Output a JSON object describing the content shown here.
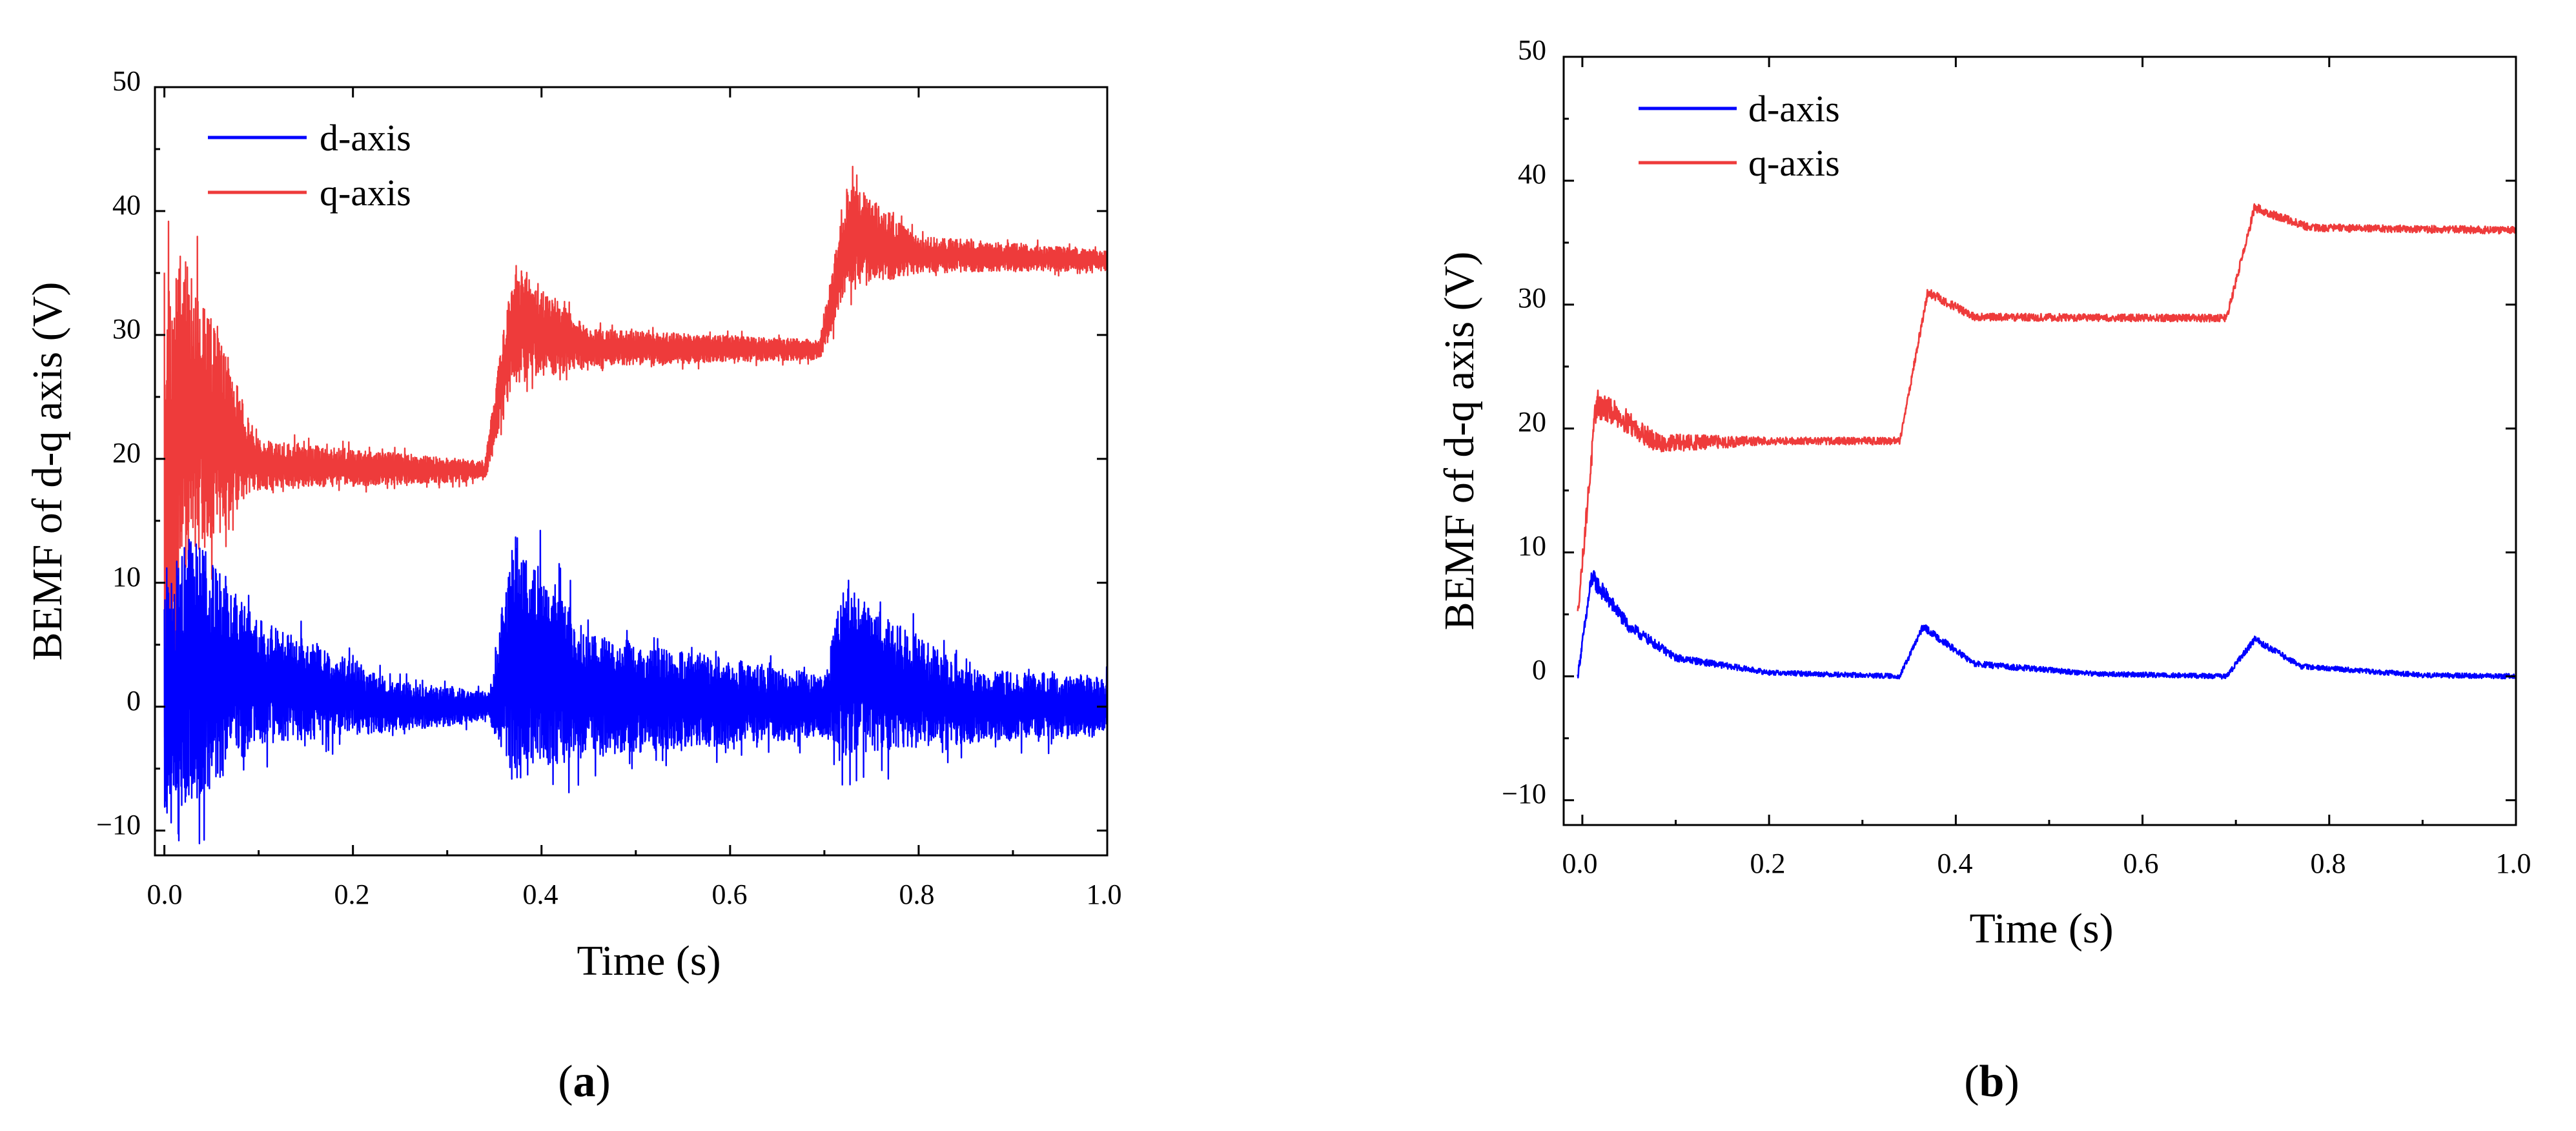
{
  "chart_data": [
    {
      "type": "line",
      "panel_label": "a",
      "xlabel": "Time (s)",
      "ylabel": "BEMF of d-q axis (V)",
      "xlim": [
        -0.01,
        1.0
      ],
      "ylim": [
        -12,
        50
      ],
      "xticks": [
        0.0,
        0.2,
        0.4,
        0.6,
        0.8,
        1.0
      ],
      "xtick_labels": [
        "0.0",
        "0.2",
        "0.4",
        "0.6",
        "0.8",
        "1.0"
      ],
      "yticks": [
        -10,
        0,
        10,
        20,
        30,
        40,
        50
      ],
      "ytick_labels": [
        "−10",
        "0",
        "10",
        "20",
        "30",
        "40",
        "50"
      ],
      "legend_position": "top-left",
      "series": [
        {
          "name": "d-axis",
          "color": "#0000ff",
          "noise": "high",
          "envelope": [
            {
              "t": 0.0,
              "center": 0,
              "amp": 10
            },
            {
              "t": 0.03,
              "center": 3,
              "amp": 11
            },
            {
              "t": 0.1,
              "center": 2,
              "amp": 5
            },
            {
              "t": 0.25,
              "center": 0,
              "amp": 2
            },
            {
              "t": 0.345,
              "center": 0,
              "amp": 1.2
            },
            {
              "t": 0.37,
              "center": 4,
              "amp": 10
            },
            {
              "t": 0.45,
              "center": 1,
              "amp": 5
            },
            {
              "t": 0.7,
              "center": 0,
              "amp": 2.5
            },
            {
              "t": 0.72,
              "center": 3,
              "amp": 7
            },
            {
              "t": 0.85,
              "center": 0,
              "amp": 3
            },
            {
              "t": 1.0,
              "center": 0,
              "amp": 2.5
            }
          ]
        },
        {
          "name": "q-axis",
          "color": "#ee3b3b",
          "noise": "high",
          "envelope": [
            {
              "t": 0.0,
              "center": 15,
              "amp": 18
            },
            {
              "t": 0.02,
              "center": 24,
              "amp": 13
            },
            {
              "t": 0.1,
              "center": 19.5,
              "amp": 2
            },
            {
              "t": 0.34,
              "center": 19,
              "amp": 0.8
            },
            {
              "t": 0.37,
              "center": 31,
              "amp": 5
            },
            {
              "t": 0.45,
              "center": 29,
              "amp": 1.5
            },
            {
              "t": 0.695,
              "center": 28.8,
              "amp": 0.8
            },
            {
              "t": 0.725,
              "center": 38,
              "amp": 4.5
            },
            {
              "t": 0.8,
              "center": 36.5,
              "amp": 1.5
            },
            {
              "t": 1.0,
              "center": 36,
              "amp": 0.8
            }
          ]
        }
      ]
    },
    {
      "type": "line",
      "panel_label": "b",
      "xlabel": "Time (s)",
      "ylabel": "BEMF of d-q axis (V)",
      "xlim": [
        -0.02,
        1.0
      ],
      "ylim": [
        -12,
        50
      ],
      "xticks": [
        0.0,
        0.2,
        0.4,
        0.6,
        0.8,
        1.0
      ],
      "xtick_labels": [
        "0.0",
        "0.2",
        "0.4",
        "0.6",
        "0.8",
        "1.0"
      ],
      "yticks": [
        -10,
        0,
        10,
        20,
        30,
        40,
        50
      ],
      "ytick_labels": [
        "−10",
        "0",
        "10",
        "20",
        "30",
        "40",
        "50"
      ],
      "legend_position": "top-left",
      "series": [
        {
          "name": "d-axis",
          "color": "#0000ff",
          "noise": "low",
          "envelope": [
            {
              "t": -0.005,
              "center": 0,
              "amp": 0.3
            },
            {
              "t": 0.01,
              "center": 8,
              "amp": 0.8
            },
            {
              "t": 0.05,
              "center": 4,
              "amp": 0.5
            },
            {
              "t": 0.1,
              "center": 1.5,
              "amp": 0.3
            },
            {
              "t": 0.2,
              "center": 0.3,
              "amp": 0.2
            },
            {
              "t": 0.34,
              "center": 0,
              "amp": 0.2
            },
            {
              "t": 0.365,
              "center": 4,
              "amp": 0.3
            },
            {
              "t": 0.42,
              "center": 1,
              "amp": 0.25
            },
            {
              "t": 0.55,
              "center": 0.2,
              "amp": 0.2
            },
            {
              "t": 0.69,
              "center": 0,
              "amp": 0.2
            },
            {
              "t": 0.72,
              "center": 3,
              "amp": 0.3
            },
            {
              "t": 0.77,
              "center": 0.8,
              "amp": 0.2
            },
            {
              "t": 0.9,
              "center": 0.1,
              "amp": 0.2
            },
            {
              "t": 1.0,
              "center": 0,
              "amp": 0.2
            }
          ]
        },
        {
          "name": "q-axis",
          "color": "#ee3b3b",
          "noise": "low",
          "envelope": [
            {
              "t": -0.005,
              "center": 5,
              "amp": 0.5
            },
            {
              "t": 0.015,
              "center": 22,
              "amp": 1.2
            },
            {
              "t": 0.04,
              "center": 21,
              "amp": 1
            },
            {
              "t": 0.08,
              "center": 18.8,
              "amp": 0.8
            },
            {
              "t": 0.2,
              "center": 19,
              "amp": 0.3
            },
            {
              "t": 0.34,
              "center": 19,
              "amp": 0.3
            },
            {
              "t": 0.37,
              "center": 31,
              "amp": 0.4
            },
            {
              "t": 0.42,
              "center": 29,
              "amp": 0.3
            },
            {
              "t": 0.69,
              "center": 28.9,
              "amp": 0.3
            },
            {
              "t": 0.72,
              "center": 37.8,
              "amp": 0.4
            },
            {
              "t": 0.78,
              "center": 36.2,
              "amp": 0.3
            },
            {
              "t": 1.0,
              "center": 36,
              "amp": 0.3
            }
          ]
        }
      ]
    }
  ]
}
